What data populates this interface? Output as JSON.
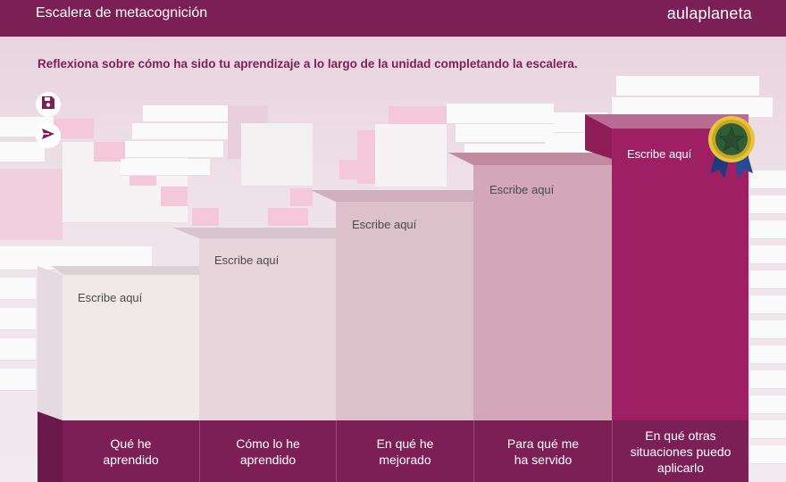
{
  "header": {
    "title": "Escalera de metacognición",
    "logo": "aulaplaneta"
  },
  "instruction": "Reflexiona sobre cómo ha sido tu aprendizaje a lo largo de la unidad completando la escalera.",
  "tools": {
    "save_icon": "save-icon",
    "send_icon": "send-icon"
  },
  "steps": [
    {
      "placeholder": "Escribe aquí",
      "label": "Qué he aprendido"
    },
    {
      "placeholder": "Escribe aquí",
      "label": "Cómo lo he aprendido"
    },
    {
      "placeholder": "Escribe aquí",
      "label": "En qué he mejorado"
    },
    {
      "placeholder": "Escribe aquí",
      "label": "Para qué me ha servido"
    },
    {
      "placeholder": "Escribe aquí",
      "label": "En qué otras situaciones puedo aplicarlo"
    }
  ],
  "colors": {
    "brand": "#7d1f57",
    "step1": "#f1e8ea",
    "step2": "#e8d5db",
    "step3": "#dcc0ca",
    "step4": "#d3a6b8",
    "step5": "#9e1f63"
  }
}
